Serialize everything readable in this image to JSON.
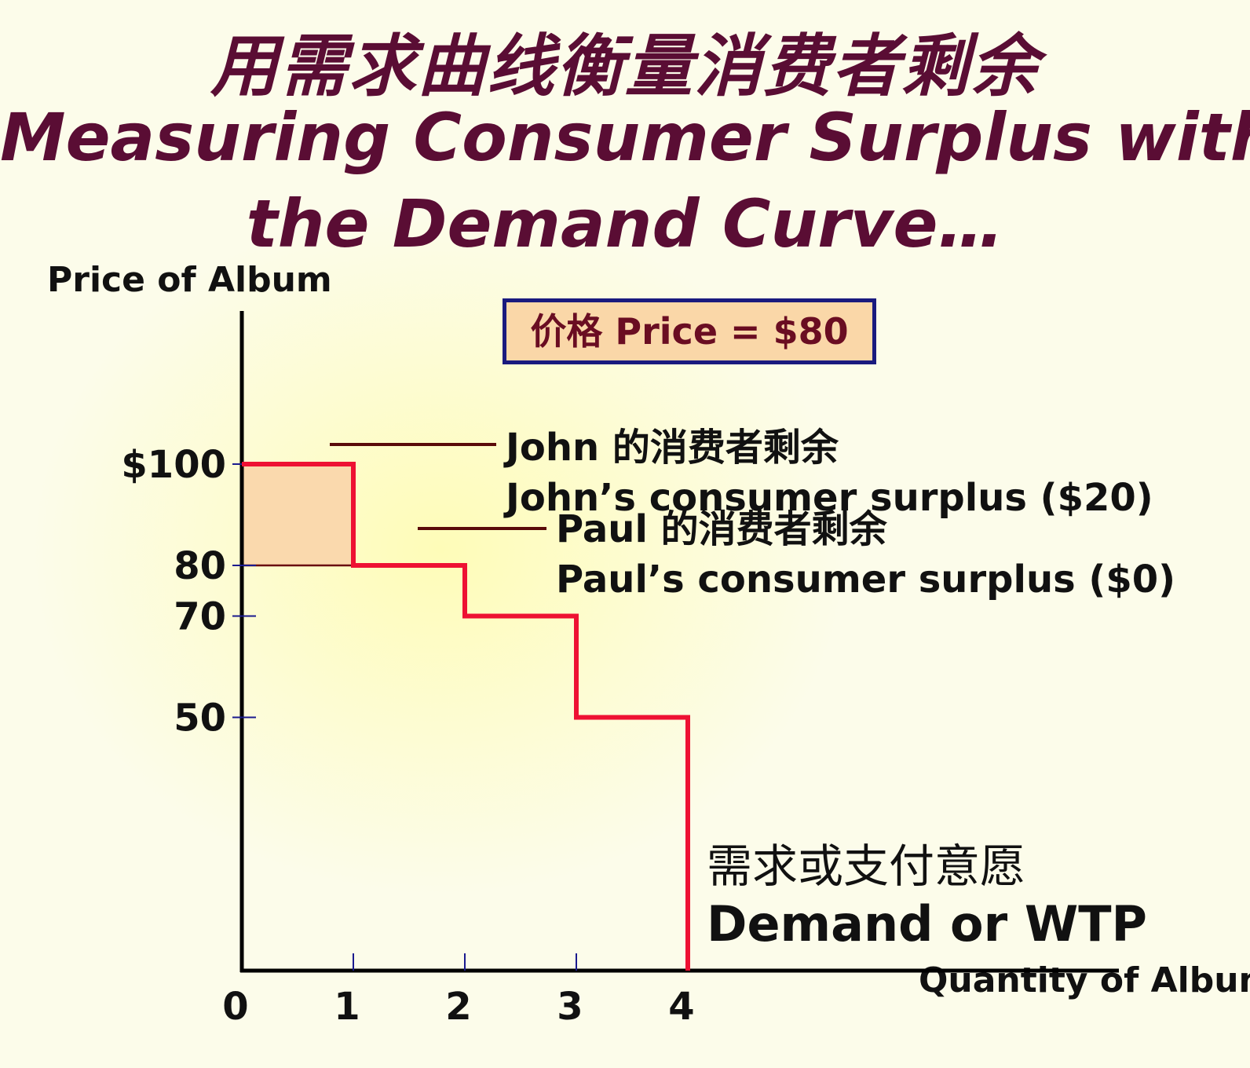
{
  "title": {
    "zh": "用需求曲线衡量消费者剩余",
    "en_line1": "Measuring Consumer Surplus with",
    "en_line2": "the Demand Curve…"
  },
  "price_box": "价格 Price = $80",
  "annotations": {
    "john_zh": "John 的消费者剩余",
    "john_en": "John’s consumer surplus ($20)",
    "paul_zh": "Paul 的消费者剩余",
    "paul_en": "Paul’s consumer surplus ($0)",
    "demand_zh": "需求或支付意愿",
    "demand_en": "Demand or WTP"
  },
  "chart_data": {
    "type": "line",
    "step": true,
    "ylabel": "Price of Album",
    "xlabel": "Quantity of Albums",
    "xlim": [
      0,
      5.5
    ],
    "ylim": [
      0,
      100
    ],
    "x_ticks": [
      0,
      1,
      2,
      3,
      4
    ],
    "x_tick_labels": [
      "0",
      "1",
      "2",
      "3",
      "4"
    ],
    "y_ticks": [
      100,
      80,
      70,
      50
    ],
    "y_tick_labels": [
      "$100",
      "80",
      "70",
      "50"
    ],
    "series": [
      {
        "name": "Demand or WTP",
        "color": "#ee1133",
        "points": [
          [
            0,
            100
          ],
          [
            1,
            100
          ],
          [
            1,
            80
          ],
          [
            2,
            80
          ],
          [
            2,
            70
          ],
          [
            3,
            70
          ],
          [
            3,
            50
          ],
          [
            4,
            50
          ],
          [
            4,
            0
          ]
        ]
      }
    ],
    "price": 80,
    "consumer_surplus": [
      {
        "name": "John",
        "value": 20,
        "x_range": [
          0,
          1
        ],
        "y_range": [
          80,
          100
        ],
        "color": "#fad9ad"
      },
      {
        "name": "Paul",
        "value": 0
      }
    ],
    "grid": false,
    "legend": "none"
  }
}
